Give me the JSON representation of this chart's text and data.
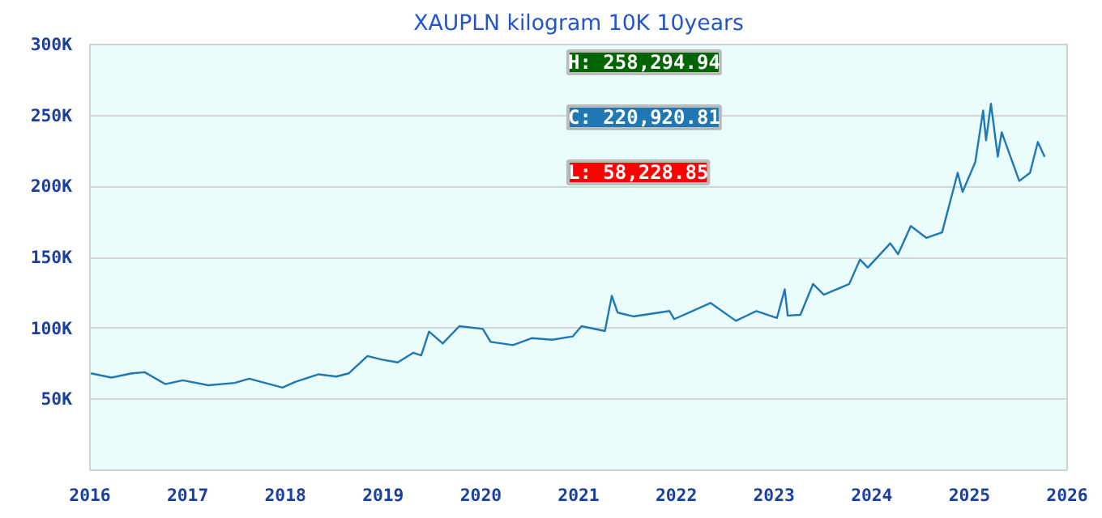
{
  "chart_data": {
    "type": "line",
    "title": "XAUPLN kilogram 10K 10years",
    "x": [
      2016.01,
      2016.22,
      2016.43,
      2016.56,
      2016.77,
      2016.95,
      2017.21,
      2017.48,
      2017.63,
      2017.84,
      2017.97,
      2018.1,
      2018.34,
      2018.52,
      2018.65,
      2018.84,
      2018.99,
      2019.15,
      2019.31,
      2019.39,
      2019.47,
      2019.61,
      2019.78,
      2020.02,
      2020.1,
      2020.33,
      2020.52,
      2020.73,
      2020.94,
      2021.03,
      2021.27,
      2021.34,
      2021.4,
      2021.56,
      2021.93,
      2021.98,
      2022.35,
      2022.61,
      2022.82,
      2023.03,
      2023.11,
      2023.14,
      2023.27,
      2023.4,
      2023.51,
      2023.77,
      2023.88,
      2023.96,
      2024.19,
      2024.27,
      2024.4,
      2024.56,
      2024.72,
      2024.88,
      2024.93,
      2025.06,
      2025.14,
      2025.17,
      2025.22,
      2025.29,
      2025.33,
      2025.51,
      2025.62,
      2025.7,
      2025.77
    ],
    "series": [
      {
        "color": "#1f77b4",
        "values": [
          68300,
          65300,
          68300,
          69100,
          60700,
          63400,
          59900,
          61500,
          64500,
          60700,
          58229,
          62200,
          67600,
          66000,
          68300,
          80500,
          77900,
          76000,
          82800,
          80900,
          97700,
          89300,
          101500,
          99600,
          90500,
          88200,
          93100,
          92000,
          94300,
          101500,
          98100,
          122900,
          111100,
          108400,
          112200,
          106500,
          117900,
          105300,
          112200,
          107300,
          127500,
          109000,
          109500,
          131300,
          123700,
          131300,
          148500,
          142800,
          159900,
          152300,
          172100,
          163700,
          167600,
          209600,
          196200,
          217200,
          253500,
          232500,
          258295,
          221000,
          238200,
          203800,
          209600,
          231300,
          220921
        ]
      }
    ],
    "xlim": [
      2016,
      2026
    ],
    "xticks": [
      2016,
      2017,
      2018,
      2019,
      2020,
      2021,
      2022,
      2023,
      2024,
      2025,
      2026
    ],
    "ylim": [
      0,
      300000
    ],
    "yticks": [
      {
        "value": 50000,
        "label": "50K"
      },
      {
        "value": 100000,
        "label": "100K"
      },
      {
        "value": 150000,
        "label": "150K"
      },
      {
        "value": 200000,
        "label": "200K"
      },
      {
        "value": 250000,
        "label": "250K"
      },
      {
        "value": 300000,
        "label": "300K"
      }
    ],
    "grid": "y",
    "annotations": [
      "H: 258,294.94",
      "C: 220,920.81",
      "L: 58,228.85"
    ]
  }
}
